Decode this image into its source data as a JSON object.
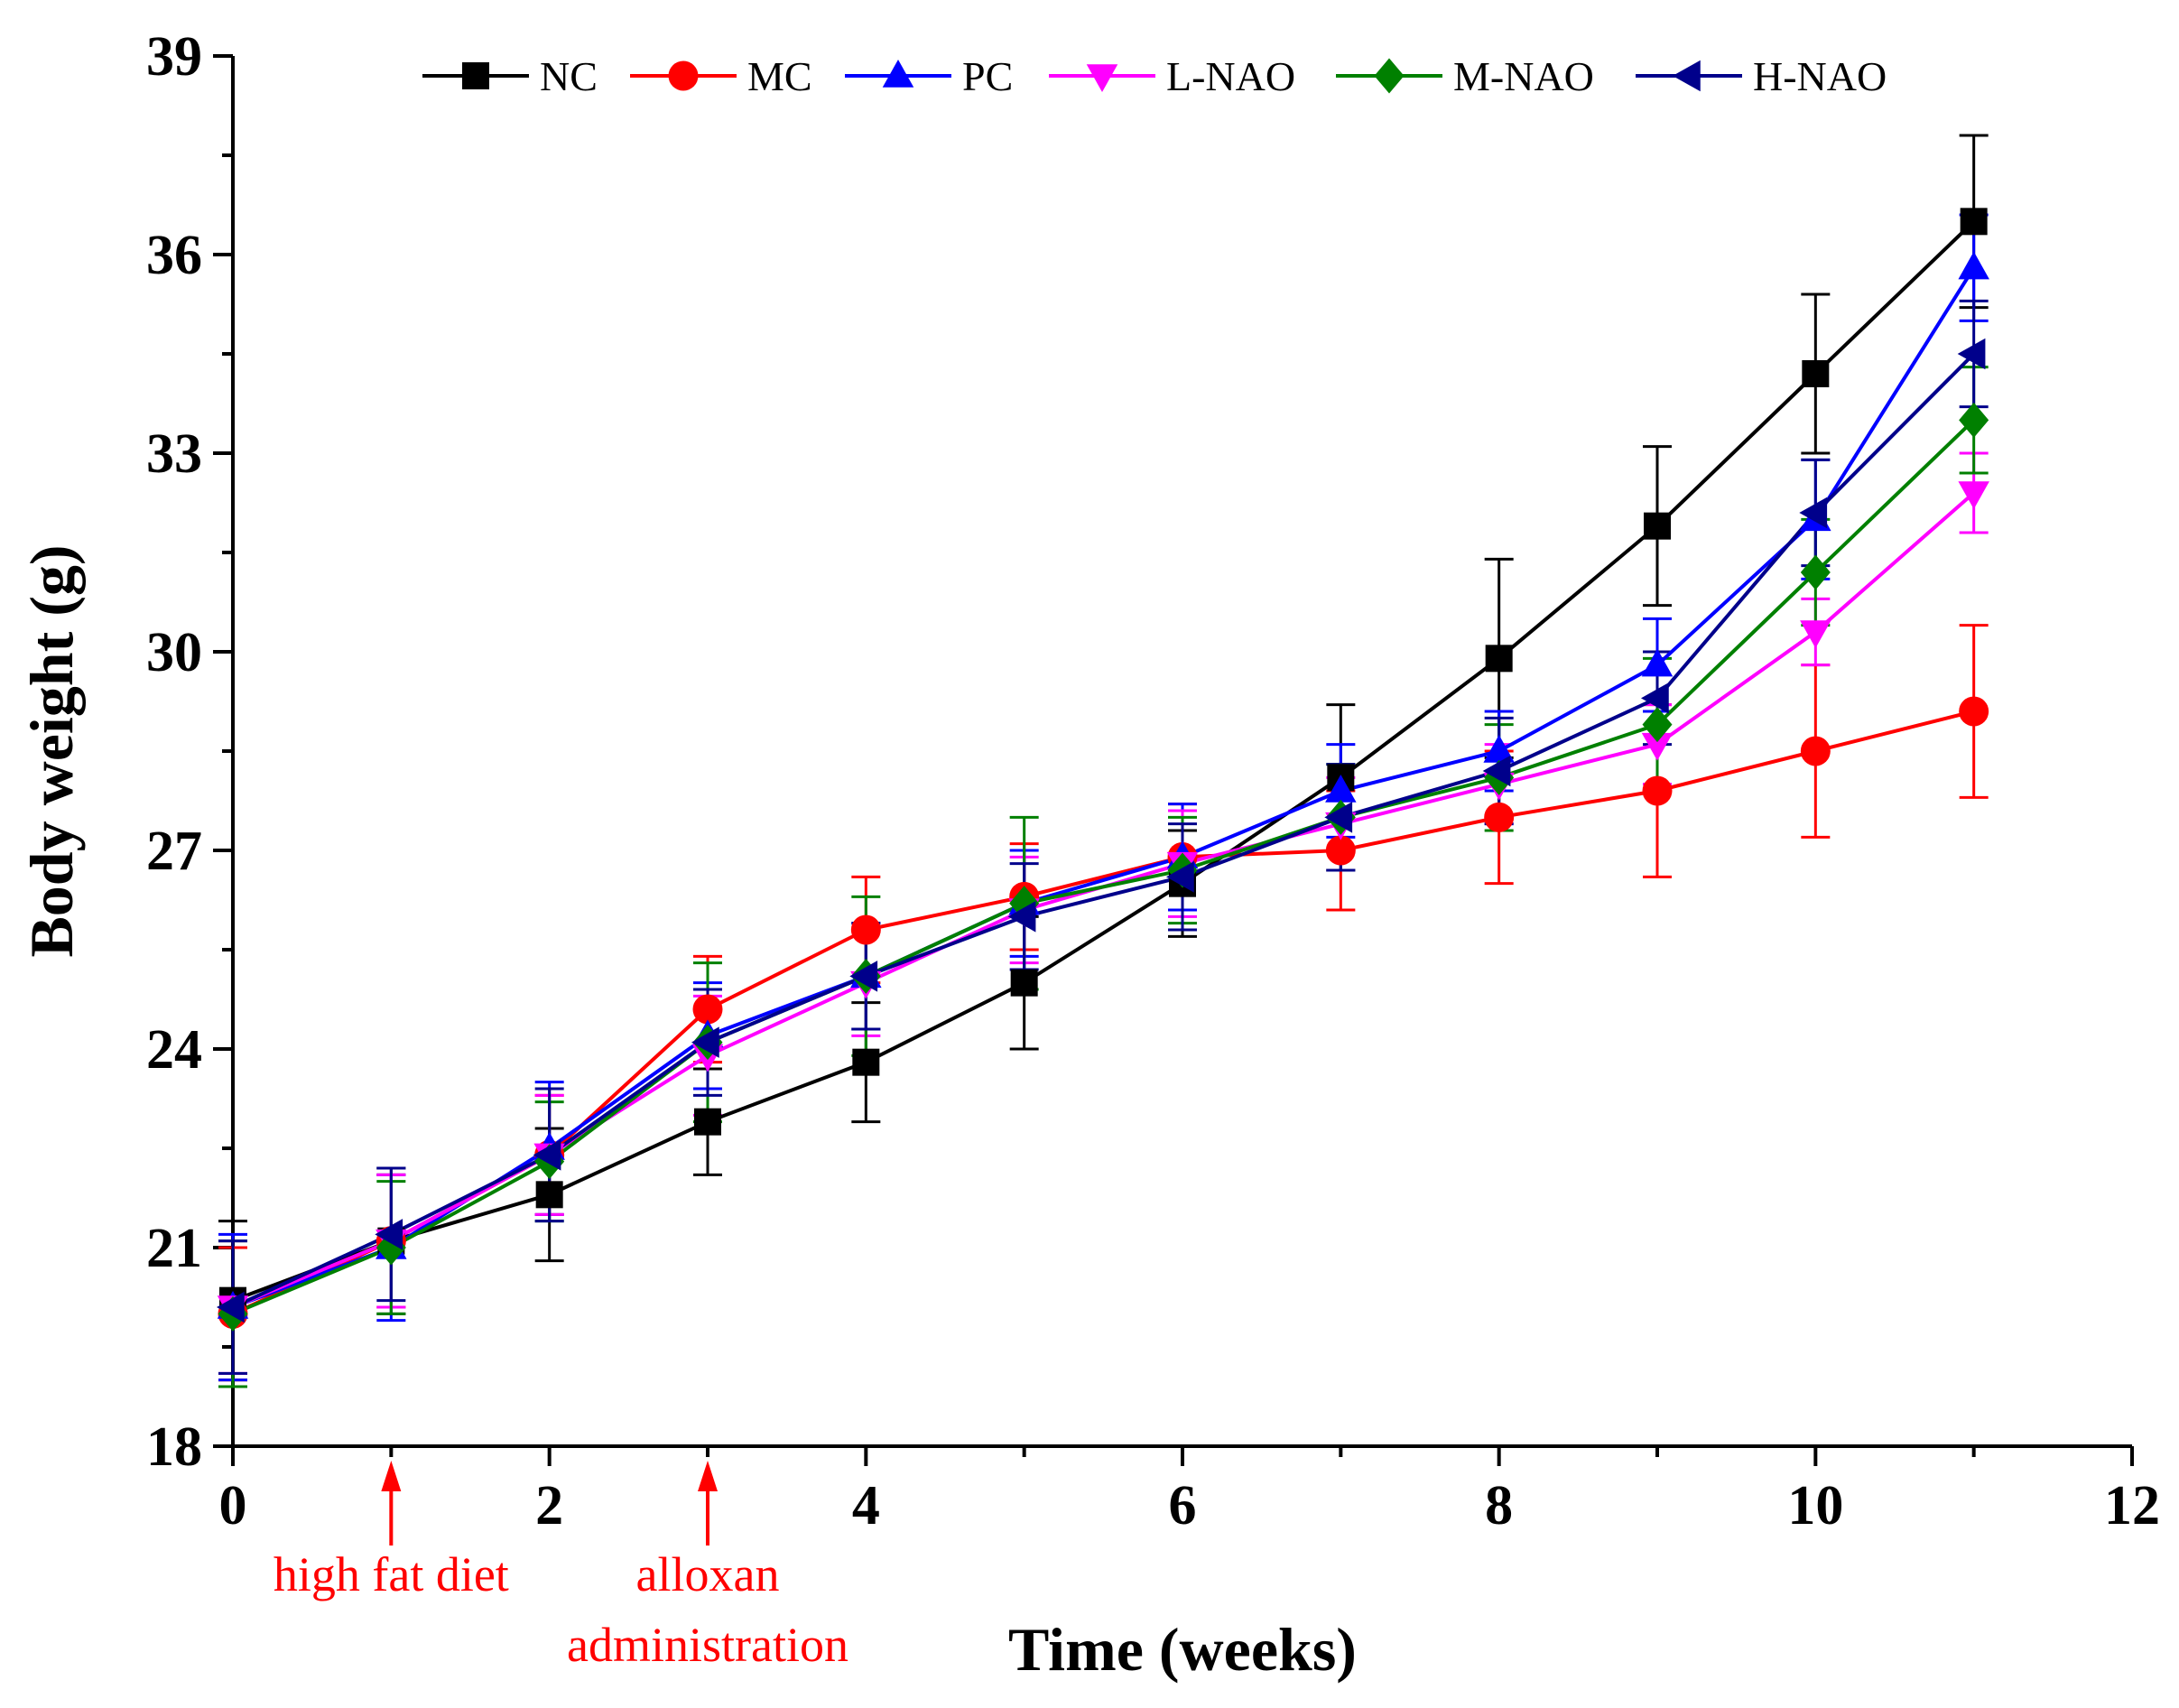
{
  "chart_data": {
    "type": "line",
    "title": "",
    "xlabel": "Time (weeks)",
    "ylabel": "Body weight (g)",
    "xlim": [
      0,
      12
    ],
    "ylim": [
      18,
      39
    ],
    "xticks": [
      0,
      2,
      4,
      6,
      8,
      10,
      12
    ],
    "yticks": [
      18,
      21,
      24,
      27,
      30,
      33,
      36,
      39
    ],
    "grid": false,
    "legend_position": "top",
    "x": [
      0,
      1,
      2,
      3,
      4,
      5,
      6,
      7,
      8,
      9,
      10,
      11
    ],
    "series": [
      {
        "name": "NC",
        "color": "#000000",
        "marker": "square",
        "values": [
          20.2,
          21.1,
          21.8,
          22.9,
          23.8,
          25.0,
          26.5,
          28.1,
          29.9,
          31.9,
          34.2,
          36.5
        ],
        "errors": [
          1.2,
          1.1,
          1.0,
          0.8,
          0.9,
          1.0,
          0.8,
          1.1,
          1.5,
          1.2,
          1.2,
          1.3
        ]
      },
      {
        "name": "MC",
        "color": "#ff0000",
        "marker": "circle",
        "values": [
          20.0,
          21.1,
          22.4,
          24.6,
          25.8,
          26.3,
          26.9,
          27.0,
          27.5,
          27.9,
          28.5,
          29.1
        ],
        "errors": [
          1.0,
          1.0,
          0.9,
          0.8,
          0.8,
          0.8,
          0.8,
          0.9,
          1.0,
          1.3,
          1.3,
          1.3
        ]
      },
      {
        "name": "PC",
        "color": "#0000ff",
        "marker": "triangle-up",
        "values": [
          20.1,
          21.0,
          22.5,
          24.2,
          25.1,
          26.2,
          26.9,
          27.9,
          28.5,
          29.8,
          32.0,
          35.8
        ],
        "errors": [
          1.1,
          1.1,
          1.0,
          0.8,
          0.8,
          0.8,
          0.8,
          0.7,
          0.6,
          0.7,
          0.9,
          0.8
        ]
      },
      {
        "name": "L-NAO",
        "color": "#ff00ff",
        "marker": "triangle-down",
        "values": [
          20.1,
          21.1,
          22.4,
          23.9,
          25.0,
          26.1,
          26.8,
          27.4,
          28.0,
          28.6,
          30.3,
          32.4
        ],
        "errors": [
          1.0,
          1.0,
          0.9,
          0.9,
          0.8,
          0.8,
          0.8,
          0.7,
          0.6,
          0.6,
          0.5,
          0.6
        ]
      },
      {
        "name": "M-NAO",
        "color": "#008000",
        "marker": "diamond",
        "values": [
          20.0,
          21.0,
          22.3,
          24.1,
          25.1,
          26.2,
          26.7,
          27.5,
          28.1,
          28.9,
          31.2,
          33.5
        ],
        "errors": [
          1.1,
          1.0,
          0.9,
          1.2,
          1.2,
          1.3,
          0.8,
          0.8,
          0.8,
          1.0,
          0.8,
          0.8
        ]
      },
      {
        "name": "H-NAO",
        "color": "#00008b",
        "marker": "triangle-left",
        "values": [
          20.1,
          21.2,
          22.4,
          24.1,
          25.1,
          26.0,
          26.6,
          27.5,
          28.2,
          29.3,
          32.1,
          34.5
        ],
        "errors": [
          1.0,
          1.0,
          1.0,
          0.8,
          0.8,
          0.8,
          0.8,
          0.8,
          0.8,
          0.7,
          0.8,
          0.8
        ]
      }
    ],
    "annotations": [
      {
        "text": "high fat diet",
        "x": 1,
        "color": "#ff0000",
        "lines": [
          "high fat diet"
        ]
      },
      {
        "text": "alloxan administration",
        "x": 3,
        "color": "#ff0000",
        "lines": [
          "alloxan",
          "administration"
        ]
      }
    ]
  }
}
